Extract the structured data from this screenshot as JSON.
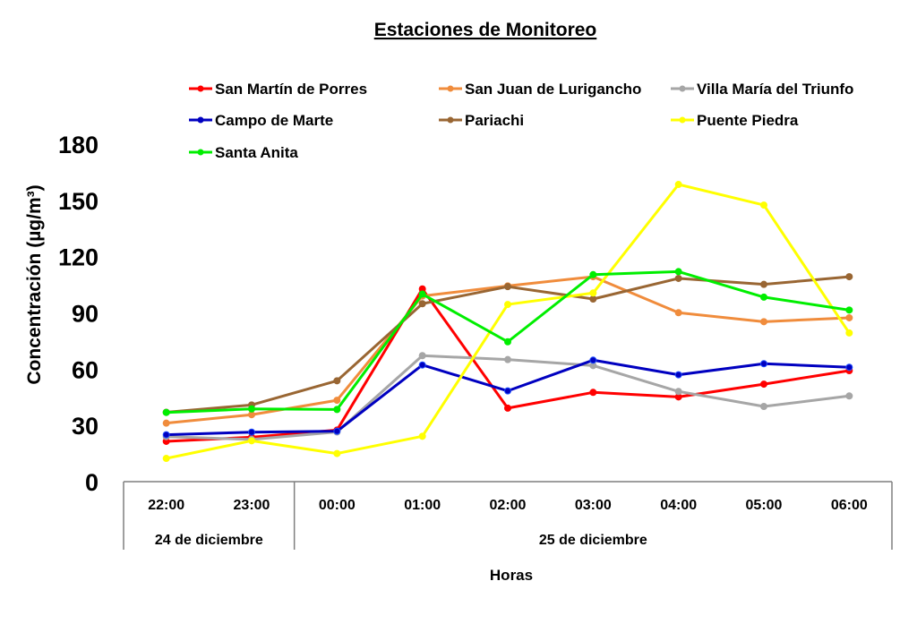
{
  "chart_data": {
    "type": "line",
    "title": "Estaciones de Monitoreo",
    "xlabel": "Horas",
    "ylabel": "Concentración (µg/m³)",
    "ylim": [
      0,
      180
    ],
    "yticks": [
      0,
      30,
      60,
      90,
      120,
      150,
      180
    ],
    "grid": false,
    "legend_position": "top",
    "categories": [
      "22:00",
      "23:00",
      "00:00",
      "01:00",
      "02:00",
      "03:00",
      "04:00",
      "05:00",
      "06:00"
    ],
    "category_groups": [
      {
        "label": "24 de diciembre",
        "count": 2
      },
      {
        "label": "25 de diciembre",
        "count": 7
      }
    ],
    "series": [
      {
        "name": "San Martín de Porres",
        "color": "#ff0000",
        "values": [
          21.5,
          23.7,
          27.5,
          102.8,
          39.2,
          47.6,
          45.2,
          52,
          59.2
        ]
      },
      {
        "name": "San Juan de Lurigancho",
        "color": "#f08c3c",
        "values": [
          31.2,
          35.7,
          43.4,
          99,
          104.4,
          109.3,
          90.1,
          85.3,
          87.4
        ]
      },
      {
        "name": "Villa María del Triunfo",
        "color": "#a6a6a6",
        "values": [
          24,
          22.5,
          26.5,
          67.2,
          65.1,
          61.9,
          48.1,
          40.1,
          45.7
        ]
      },
      {
        "name": "Campo de Marte",
        "color": "#0000c0",
        "values": [
          25,
          26.4,
          26.9,
          62.2,
          48.4,
          64.8,
          57,
          62.9,
          61
        ]
      },
      {
        "name": "Pariachi",
        "color": "#996633",
        "values": [
          37,
          40.9,
          53.8,
          94.9,
          104,
          97.4,
          108.4,
          105.2,
          109.3
        ]
      },
      {
        "name": "Puente Piedra",
        "color": "#ffff00",
        "values": [
          12.4,
          21.8,
          15,
          24.2,
          94.5,
          100.6,
          158.5,
          147.5,
          79.3
        ]
      },
      {
        "name": "Santa Anita",
        "color": "#00ee00",
        "values": [
          36.9,
          38.8,
          38.5,
          100,
          74.6,
          110.4,
          112,
          98.4,
          91.5
        ]
      }
    ]
  }
}
